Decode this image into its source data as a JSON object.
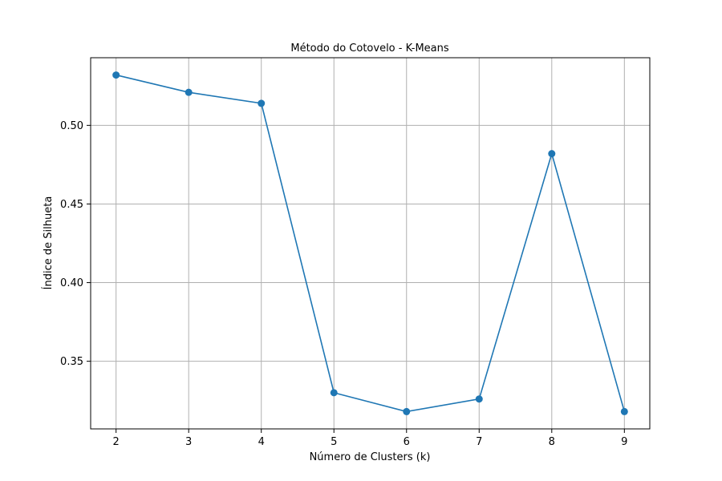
{
  "chart_data": {
    "type": "line",
    "title": "Método do Cotovelo - K-Means",
    "xlabel": "Número de Clusters (k)",
    "ylabel": "Índice de Silhueta",
    "x": [
      2,
      3,
      4,
      5,
      6,
      7,
      8,
      9
    ],
    "series": [
      {
        "values": [
          0.532,
          0.521,
          0.514,
          0.33,
          0.318,
          0.326,
          0.482,
          0.318
        ],
        "color": "#1f77b4",
        "marker": "circle"
      }
    ],
    "xticks": [
      "2",
      "3",
      "4",
      "5",
      "6",
      "7",
      "8",
      "9"
    ],
    "yticks": [
      "0.35",
      "0.40",
      "0.45",
      "0.50"
    ],
    "ytick_values": [
      0.35,
      0.4,
      0.45,
      0.5
    ],
    "xlim": [
      1.65,
      9.35
    ],
    "ylim": [
      0.307,
      0.543
    ],
    "grid": true
  }
}
